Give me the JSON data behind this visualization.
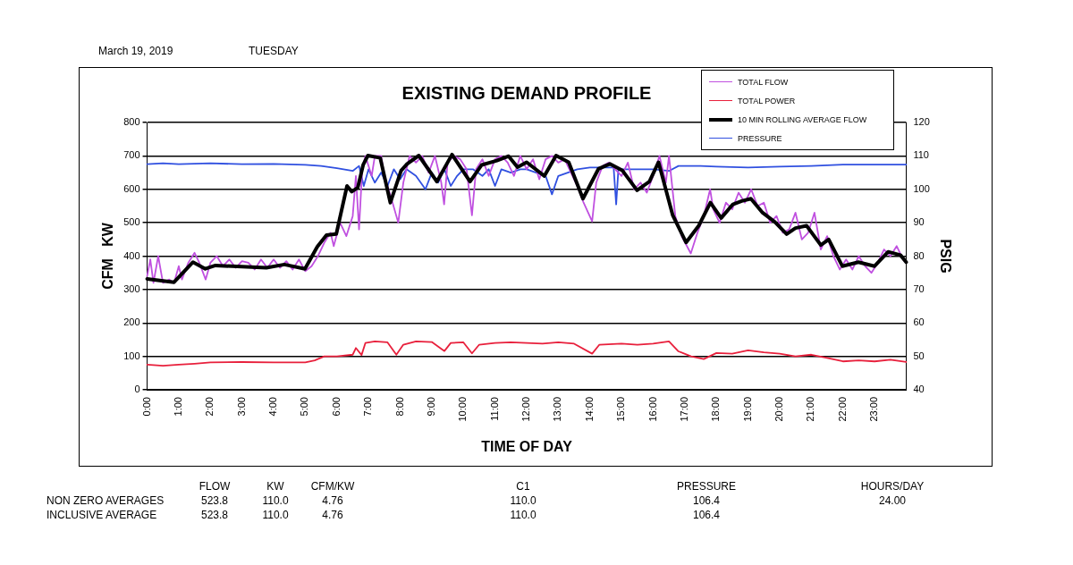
{
  "chart_data": {
    "type": "line",
    "title": "EXISTING DEMAND PROFILE",
    "xlabel": "TIME OF DAY",
    "ylabel": "CFM   KW",
    "y2label": "PSIG",
    "xlim": [
      0,
      24
    ],
    "xticks": [
      {
        "value": 0,
        "label": "0:00"
      },
      {
        "value": 1,
        "label": "1:00"
      },
      {
        "value": 2,
        "label": "2:00"
      },
      {
        "value": 3,
        "label": "3:00"
      },
      {
        "value": 4,
        "label": "4:00"
      },
      {
        "value": 5,
        "label": "5:00"
      },
      {
        "value": 6,
        "label": "6:00"
      },
      {
        "value": 7,
        "label": "7:00"
      },
      {
        "value": 8,
        "label": "8:00"
      },
      {
        "value": 9,
        "label": "9:00"
      },
      {
        "value": 10,
        "label": "10:00"
      },
      {
        "value": 11,
        "label": "11:00"
      },
      {
        "value": 12,
        "label": "12:00"
      },
      {
        "value": 13,
        "label": "13:00"
      },
      {
        "value": 14,
        "label": "14:00"
      },
      {
        "value": 15,
        "label": "15:00"
      },
      {
        "value": 16,
        "label": "16:00"
      },
      {
        "value": 17,
        "label": "17:00"
      },
      {
        "value": 18,
        "label": "18:00"
      },
      {
        "value": 19,
        "label": "19:00"
      },
      {
        "value": 20,
        "label": "20:00"
      },
      {
        "value": 21,
        "label": "21:00"
      },
      {
        "value": 22,
        "label": "22:00"
      },
      {
        "value": 23,
        "label": "23:00"
      }
    ],
    "ylim": [
      0,
      800
    ],
    "yticks": [
      0,
      100,
      200,
      300,
      400,
      500,
      600,
      700,
      800
    ],
    "y2lim": [
      40,
      120
    ],
    "y2ticks": [
      40,
      50,
      60,
      70,
      80,
      90,
      100,
      110,
      120
    ],
    "grid": "y",
    "legend": "top right",
    "marker": "none",
    "line_style": "solid",
    "series": [
      {
        "name": "TOTAL FLOW",
        "color": "#c050e0",
        "x": [
          0,
          0.1,
          0.2,
          0.35,
          0.5,
          0.7,
          0.85,
          1.0,
          1.1,
          1.3,
          1.5,
          1.65,
          1.85,
          2.0,
          2.2,
          2.4,
          2.6,
          2.8,
          3.0,
          3.2,
          3.4,
          3.6,
          3.8,
          4.0,
          4.2,
          4.4,
          4.6,
          4.8,
          5.0,
          5.2,
          5.4,
          5.6,
          5.8,
          5.9,
          6.1,
          6.3,
          6.5,
          6.6,
          6.7,
          6.8,
          6.9,
          7.1,
          7.2,
          7.4,
          7.5,
          7.7,
          7.94,
          8.1,
          8.3,
          8.5,
          8.7,
          8.9,
          9.1,
          9.3,
          9.39,
          9.5,
          9.7,
          9.9,
          10.1,
          10.27,
          10.4,
          10.6,
          10.8,
          11.0,
          11.2,
          11.4,
          11.6,
          11.8,
          12.0,
          12.2,
          12.4,
          12.6,
          12.8,
          13.0,
          13.2,
          13.4,
          13.6,
          13.8,
          14.07,
          14.2,
          14.4,
          14.6,
          14.8,
          15.0,
          15.2,
          15.4,
          15.6,
          15.8,
          16.0,
          16.2,
          16.4,
          16.5,
          16.7,
          16.9,
          17.19,
          17.4,
          17.6,
          17.8,
          17.9,
          18.1,
          18.3,
          18.5,
          18.7,
          18.9,
          19.1,
          19.3,
          19.5,
          19.7,
          19.9,
          20.1,
          20.3,
          20.5,
          20.7,
          20.9,
          21.1,
          21.3,
          21.5,
          21.7,
          21.9,
          22.1,
          22.3,
          22.5,
          22.7,
          22.9,
          23.1,
          23.3,
          23.5,
          23.7,
          23.9,
          24.0
        ],
        "values": [
          340,
          390,
          320,
          400,
          320,
          330,
          320,
          370,
          330,
          380,
          410,
          380,
          330,
          380,
          400,
          370,
          390,
          365,
          385,
          380,
          360,
          390,
          365,
          390,
          365,
          385,
          360,
          390,
          355,
          370,
          400,
          440,
          470,
          430,
          500,
          460,
          520,
          640,
          480,
          660,
          700,
          640,
          700,
          700,
          640,
          580,
          500,
          620,
          700,
          680,
          700,
          650,
          700,
          620,
          555,
          680,
          700,
          690,
          660,
          522,
          660,
          690,
          640,
          690,
          700,
          680,
          640,
          700,
          660,
          690,
          630,
          690,
          700,
          680,
          690,
          650,
          610,
          560,
          504,
          620,
          670,
          680,
          660,
          640,
          680,
          600,
          620,
          590,
          640,
          700,
          620,
          700,
          520,
          460,
          408,
          470,
          520,
          600,
          540,
          500,
          560,
          540,
          590,
          560,
          600,
          550,
          560,
          500,
          520,
          470,
          480,
          530,
          450,
          470,
          530,
          420,
          460,
          400,
          360,
          390,
          360,
          400,
          370,
          350,
          380,
          420,
          400,
          430,
          390,
          380
        ]
      },
      {
        "name": "TOTAL POWER",
        "color": "#e8203c",
        "x": [
          0,
          0.5,
          1,
          1.5,
          2,
          3,
          4,
          5,
          5.3,
          5.6,
          6.0,
          6.5,
          6.6,
          6.78,
          6.9,
          7.2,
          7.6,
          7.88,
          8.1,
          8.5,
          9.0,
          9.4,
          9.6,
          10.0,
          10.27,
          10.5,
          11,
          11.5,
          12,
          12.5,
          13,
          13.5,
          14.07,
          14.3,
          15,
          15.5,
          16,
          16.5,
          16.8,
          17.2,
          17.6,
          18.0,
          18.5,
          19.0,
          19.5,
          20.0,
          20.5,
          21,
          21.5,
          22,
          22.5,
          23,
          23.5,
          24
        ],
        "values": [
          75,
          72,
          75,
          78,
          82,
          83,
          82,
          82,
          88,
          100,
          100,
          105,
          125,
          104,
          140,
          145,
          142,
          105,
          135,
          145,
          143,
          116,
          140,
          142,
          109,
          135,
          140,
          142,
          140,
          138,
          142,
          138,
          108,
          135,
          138,
          135,
          138,
          145,
          115,
          100,
          92,
          110,
          108,
          118,
          112,
          108,
          100,
          105,
          95,
          85,
          88,
          85,
          90,
          83
        ]
      },
      {
        "name": "10 MIN ROLLING AVERAGE FLOW",
        "color": "#000000",
        "x": [
          0,
          0.85,
          1.45,
          1.84,
          2.16,
          3.77,
          4.34,
          4.99,
          5.38,
          5.67,
          5.98,
          6.32,
          6.47,
          6.66,
          6.83,
          6.98,
          7.37,
          7.69,
          8.03,
          8.22,
          8.59,
          9.16,
          9.64,
          10.21,
          10.58,
          11.06,
          11.43,
          11.71,
          12.0,
          12.56,
          12.93,
          13.33,
          13.78,
          14.27,
          14.63,
          15.03,
          15.49,
          15.88,
          16.17,
          16.62,
          17.04,
          17.44,
          17.81,
          18.15,
          18.52,
          18.8,
          19.09,
          19.46,
          19.85,
          20.22,
          20.5,
          20.85,
          21.3,
          21.55,
          21.98,
          22.49,
          23.0,
          23.43,
          23.82,
          24
        ],
        "values": [
          332,
          322,
          382,
          362,
          372,
          365,
          375,
          362,
          428,
          463,
          466,
          610,
          593,
          605,
          673,
          701,
          694,
          560,
          656,
          676,
          701,
          623,
          704,
          623,
          673,
          686,
          699,
          666,
          681,
          640,
          701,
          681,
          572,
          661,
          676,
          656,
          597,
          623,
          681,
          522,
          441,
          491,
          560,
          514,
          555,
          565,
          572,
          530,
          502,
          466,
          484,
          491,
          433,
          450,
          370,
          382,
          370,
          413,
          403,
          382
        ]
      },
      {
        "name": "PRESSURE",
        "color": "#3050e0",
        "axis": "y2",
        "x": [
          0,
          0.5,
          1,
          2,
          3,
          4,
          5,
          5.5,
          6,
          6.5,
          6.7,
          6.85,
          7.0,
          7.2,
          7.4,
          7.6,
          7.8,
          8.0,
          8.2,
          8.5,
          8.8,
          9.0,
          9.2,
          9.4,
          9.6,
          9.8,
          10.0,
          10.3,
          10.6,
          10.8,
          11.0,
          11.2,
          11.5,
          11.8,
          12.0,
          12.3,
          12.6,
          12.8,
          13.0,
          13.3,
          13.6,
          14.0,
          14.5,
          14.75,
          14.83,
          14.9,
          15.5,
          16.0,
          16.5,
          16.8,
          17.5,
          18,
          19,
          20,
          21,
          22,
          23,
          24
        ],
        "values": [
          107.5,
          107.8,
          107.5,
          107.8,
          107.5,
          107.6,
          107.3,
          107,
          106.3,
          105.5,
          107,
          101,
          106,
          102,
          105,
          101,
          106,
          103,
          106,
          104,
          100,
          105,
          102,
          106,
          101,
          104,
          106,
          106,
          104,
          106,
          101,
          106,
          105,
          106,
          106,
          105,
          104,
          98.5,
          104,
          105,
          106,
          106.5,
          106.5,
          106.5,
          95.5,
          106,
          106,
          106,
          105.5,
          107,
          107,
          106.8,
          106.5,
          106.8,
          107,
          107.4,
          107.4,
          107.4
        ]
      }
    ],
    "annotations": [
      "March 19, 2019",
      "TUESDAY",
      "FLOW",
      "KW",
      "CFM/KW",
      "C1",
      "PRESSURE",
      "HOURS/DAY",
      "NON ZERO AVERAGES",
      "523.8",
      "110.0",
      "4.76",
      "110.0",
      "106.4",
      "24.00",
      "INCLUSIVE AVERAGE",
      "523.8",
      "110.0",
      "4.76",
      "110.0",
      "106.4"
    ]
  }
}
